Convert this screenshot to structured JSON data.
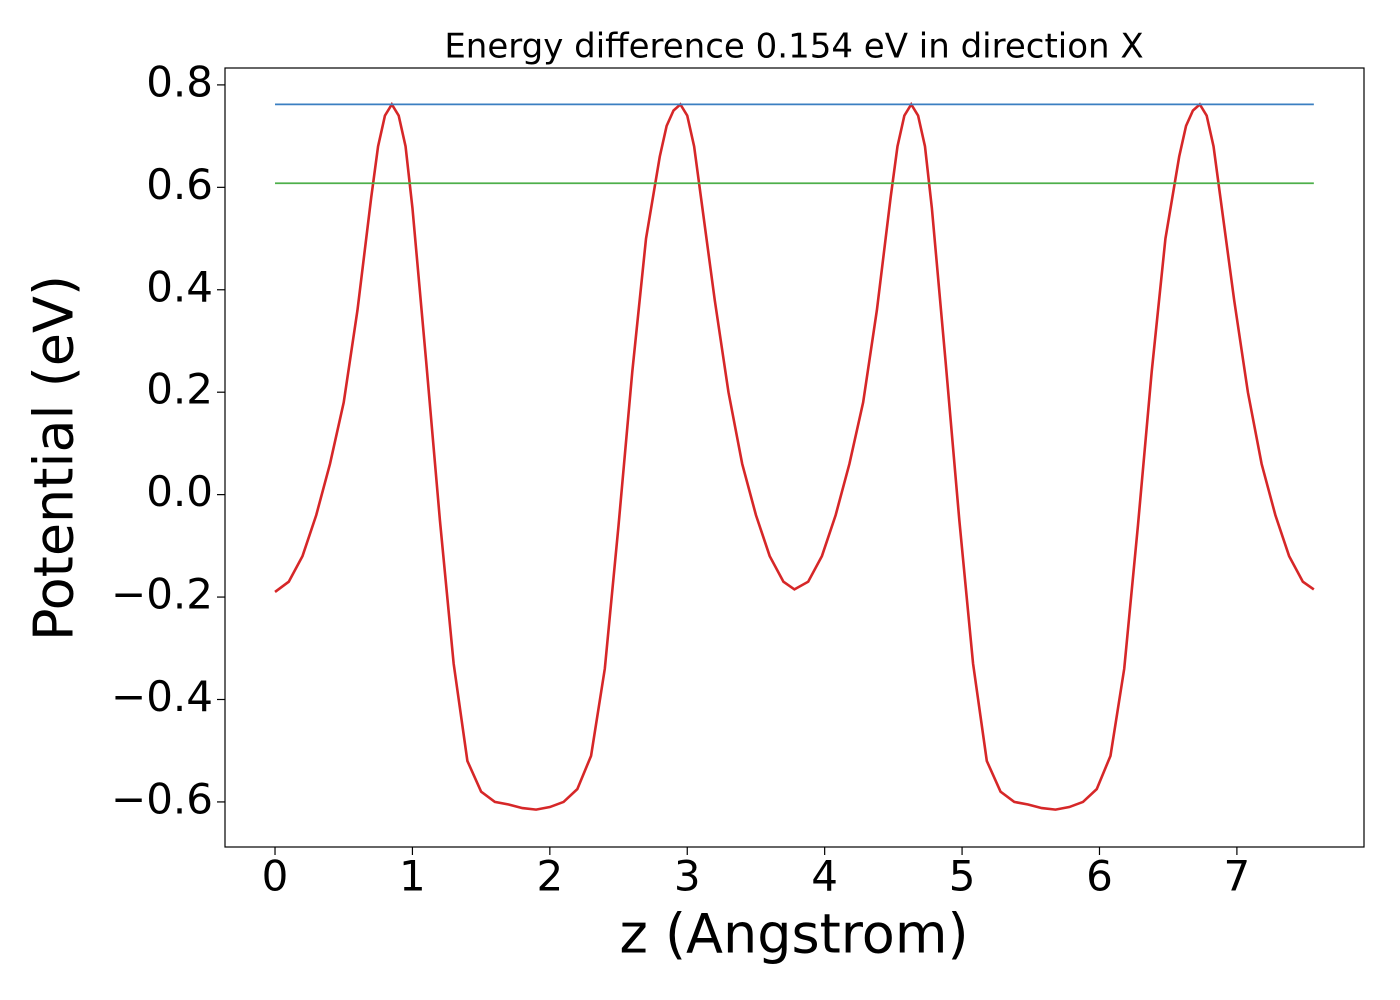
{
  "chart_data": {
    "type": "line",
    "title": "Energy difference 0.154 eV in direction X",
    "x_label": "z (Angstrom)",
    "y_label": "Potential (eV)",
    "xlim": [
      -0.364,
      7.925
    ],
    "ylim": [
      -0.688,
      0.833
    ],
    "xticks": [
      0,
      1,
      2,
      3,
      4,
      5,
      6,
      7
    ],
    "yticks": [
      {
        "value": -0.6,
        "label": "−0.6"
      },
      {
        "value": -0.4,
        "label": "−0.4"
      },
      {
        "value": -0.2,
        "label": "−0.2"
      },
      {
        "value": 0,
        "label": "0.0"
      },
      0.2,
      0.4,
      0.6,
      0.8
    ],
    "grid": false,
    "series": [
      {
        "color": "#d62728",
        "x": [
          0,
          0.1,
          0.2,
          0.3,
          0.4,
          0.5,
          0.6,
          0.7,
          0.75,
          0.8,
          0.85,
          0.9,
          0.95,
          1.0,
          1.1,
          1.2,
          1.3,
          1.4,
          1.5,
          1.6,
          1.7,
          1.8,
          1.9,
          2.0,
          2.1,
          2.2,
          2.3,
          2.4,
          2.5,
          2.6,
          2.7,
          2.8,
          2.85,
          2.9,
          2.95,
          3.0,
          3.05,
          3.1,
          3.2,
          3.3,
          3.4,
          3.5,
          3.6,
          3.7,
          3.78,
          3.88,
          3.98,
          4.08,
          4.18,
          4.28,
          4.38,
          4.48,
          4.53,
          4.58,
          4.63,
          4.68,
          4.73,
          4.78,
          4.88,
          4.98,
          5.08,
          5.18,
          5.28,
          5.38,
          5.48,
          5.58,
          5.68,
          5.78,
          5.88,
          5.98,
          6.08,
          6.18,
          6.28,
          6.38,
          6.48,
          6.58,
          6.63,
          6.68,
          6.73,
          6.78,
          6.83,
          6.88,
          6.98,
          7.08,
          7.18,
          7.28,
          7.38,
          7.48,
          7.56
        ],
        "values": [
          -0.19,
          -0.17,
          -0.12,
          -0.04,
          0.06,
          0.18,
          0.36,
          0.58,
          0.68,
          0.74,
          0.762,
          0.74,
          0.68,
          0.56,
          0.26,
          -0.05,
          -0.33,
          -0.52,
          -0.58,
          -0.6,
          -0.605,
          -0.612,
          -0.615,
          -0.61,
          -0.6,
          -0.575,
          -0.51,
          -0.34,
          -0.06,
          0.24,
          0.5,
          0.66,
          0.72,
          0.75,
          0.762,
          0.74,
          0.68,
          0.58,
          0.38,
          0.2,
          0.06,
          -0.04,
          -0.12,
          -0.17,
          -0.185,
          -0.17,
          -0.12,
          -0.04,
          0.06,
          0.18,
          0.36,
          0.58,
          0.68,
          0.74,
          0.762,
          0.74,
          0.68,
          0.56,
          0.26,
          -0.05,
          -0.33,
          -0.52,
          -0.58,
          -0.6,
          -0.605,
          -0.612,
          -0.615,
          -0.61,
          -0.6,
          -0.575,
          -0.51,
          -0.34,
          -0.06,
          0.24,
          0.5,
          0.66,
          0.72,
          0.75,
          0.762,
          0.74,
          0.68,
          0.58,
          0.38,
          0.2,
          0.06,
          -0.04,
          -0.12,
          -0.17,
          -0.185
        ]
      },
      {
        "color": "#3a7fc1",
        "x": [
          0,
          7.56
        ],
        "values": [
          0.762,
          0.762
        ]
      },
      {
        "color": "#4daf4a",
        "x": [
          0,
          7.56
        ],
        "values": [
          0.608,
          0.608
        ]
      }
    ]
  }
}
